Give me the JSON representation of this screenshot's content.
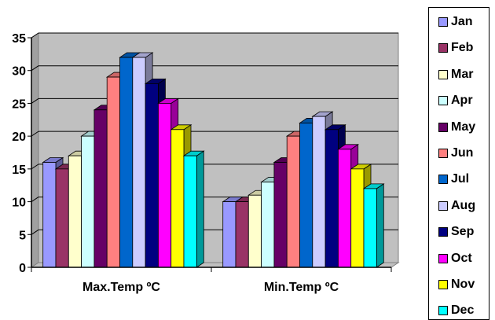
{
  "chart_data": {
    "type": "bar",
    "categories": [
      "Max.Temp ºC",
      "Min.Temp ºC"
    ],
    "series": [
      {
        "name": "Jan",
        "color": "#9999ff",
        "values": [
          16,
          10
        ]
      },
      {
        "name": "Feb",
        "color": "#993366",
        "values": [
          15,
          10
        ]
      },
      {
        "name": "Mar",
        "color": "#ffffcc",
        "values": [
          17,
          11
        ]
      },
      {
        "name": "Apr",
        "color": "#ccffff",
        "values": [
          20,
          13
        ]
      },
      {
        "name": "May",
        "color": "#660066",
        "values": [
          24,
          16
        ]
      },
      {
        "name": "Jun",
        "color": "#ff8080",
        "values": [
          29,
          20
        ]
      },
      {
        "name": "Jul",
        "color": "#0066cc",
        "values": [
          32,
          22
        ]
      },
      {
        "name": "Aug",
        "color": "#ccccff",
        "values": [
          32,
          23
        ]
      },
      {
        "name": "Sep",
        "color": "#000080",
        "values": [
          28,
          21
        ]
      },
      {
        "name": "Oct",
        "color": "#ff00ff",
        "values": [
          25,
          18
        ]
      },
      {
        "name": "Nov",
        "color": "#ffff00",
        "values": [
          21,
          15
        ]
      },
      {
        "name": "Dec",
        "color": "#00ffff",
        "values": [
          17,
          12
        ]
      }
    ],
    "ylim": [
      0,
      35
    ],
    "yticks": [
      "0",
      "5",
      "10",
      "15",
      "20",
      "25",
      "30",
      "35"
    ],
    "grid": true,
    "legend": "right",
    "plot_background": "#c0c0c0"
  }
}
